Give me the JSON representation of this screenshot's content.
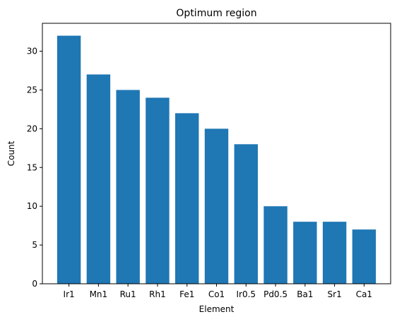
{
  "chart_data": {
    "type": "bar",
    "title": "Optimum region",
    "xlabel": "Element",
    "ylabel": "Count",
    "categories": [
      "Ir1",
      "Mn1",
      "Ru1",
      "Rh1",
      "Fe1",
      "Co1",
      "Ir0.5",
      "Pd0.5",
      "Ba1",
      "Sr1",
      "Ca1"
    ],
    "values": [
      32,
      27,
      25,
      24,
      22,
      20,
      18,
      10,
      8,
      8,
      7
    ],
    "ylim": [
      0,
      33.6
    ],
    "yticks": [
      0,
      5,
      10,
      15,
      20,
      25,
      30
    ],
    "bar_color": "#1f77b4",
    "grid": false,
    "legend": "none"
  }
}
